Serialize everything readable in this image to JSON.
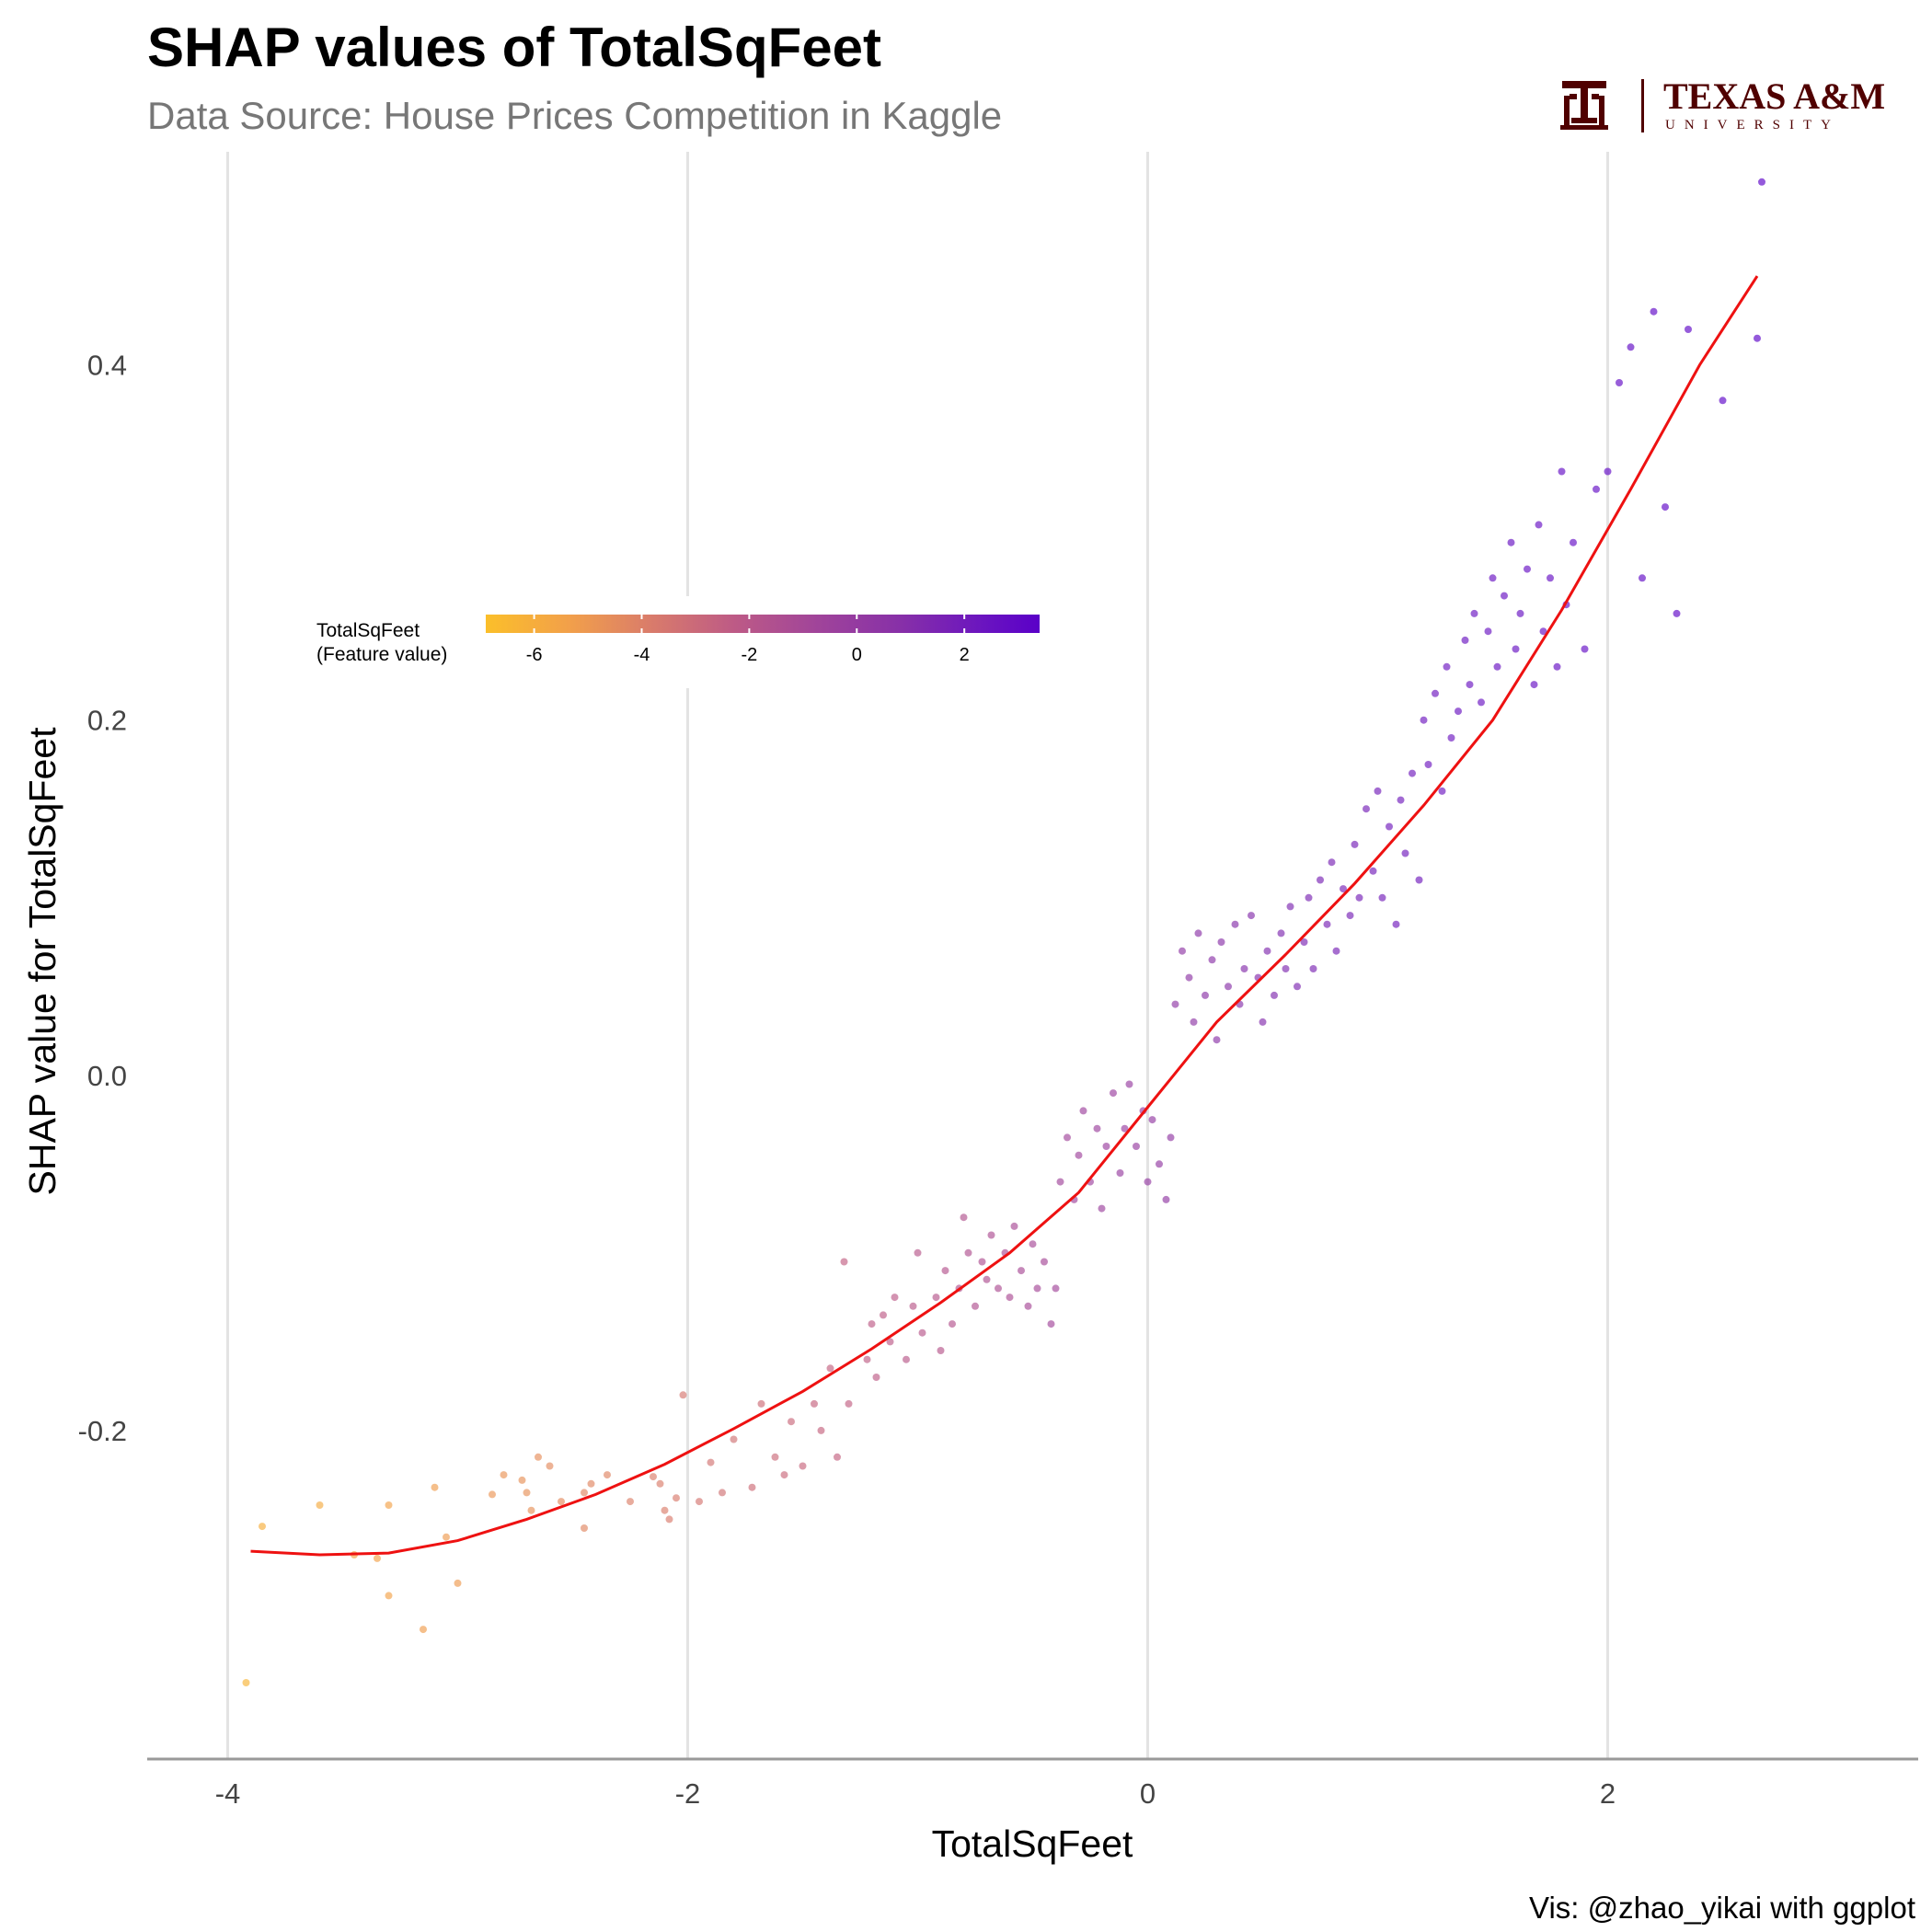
{
  "header": {
    "title": "SHAP values of TotalSqFeet",
    "subtitle": "Data Source: House Prices Competition in Kaggle",
    "caption": "Vis: @zhao_yikai with ggplot"
  },
  "logo": {
    "name": "TEXAS A&M",
    "sub": "UNIVERSITY",
    "color": "#500000"
  },
  "chart_data": {
    "type": "scatter",
    "title": "SHAP values of TotalSqFeet",
    "subtitle": "Data Source: House Prices Competition in Kaggle",
    "xlabel": "TotalSqFeet",
    "ylabel": "SHAP value for TotalSqFeet",
    "xlim": [
      -4.35,
      3.35
    ],
    "ylim": [
      -0.385,
      0.52
    ],
    "x_ticks": [
      -4,
      -2,
      0,
      2
    ],
    "x_tick_labels": [
      "-4",
      "-2",
      "0",
      "2"
    ],
    "y_ticks": [
      -0.2,
      0.0,
      0.2,
      0.4
    ],
    "y_tick_labels": [
      "-0.2",
      "0.0",
      "0.2",
      "0.4"
    ],
    "grid": "vertical major gridlines",
    "point_alpha": 0.65,
    "color_scale": {
      "title_line1": "TotalSqFeet",
      "title_line2": "(Feature value)",
      "min": -6.9,
      "max": 3.4,
      "ticks": [
        -6,
        -4,
        -2,
        0,
        2
      ],
      "tick_labels": [
        "-6",
        "-4",
        "-2",
        "0",
        "2"
      ],
      "colors": [
        "#fbbf2a",
        "#f2a04a",
        "#d97b6b",
        "#bd5a86",
        "#a0449a",
        "#8730a8",
        "#6a14c0",
        "#5a00c8"
      ],
      "legend_position": "upper-left inside plot, horizontal"
    },
    "smooth_line": {
      "color": "#ee1111",
      "x": [
        -3.9,
        -3.6,
        -3.3,
        -3.0,
        -2.7,
        -2.4,
        -2.1,
        -1.8,
        -1.5,
        -1.2,
        -0.9,
        -0.6,
        -0.3,
        0.0,
        0.3,
        0.6,
        0.9,
        1.2,
        1.5,
        1.8,
        2.1,
        2.4,
        2.65
      ],
      "y": [
        -0.268,
        -0.27,
        -0.269,
        -0.262,
        -0.25,
        -0.236,
        -0.219,
        -0.199,
        -0.178,
        -0.154,
        -0.128,
        -0.1,
        -0.066,
        -0.018,
        0.03,
        0.068,
        0.108,
        0.152,
        0.2,
        0.262,
        0.33,
        0.4,
        0.45
      ]
    },
    "series": [
      {
        "x": [
          -3.92,
          -3.85,
          -3.6,
          -3.45,
          -3.35,
          -3.3,
          -3.3,
          -3.15,
          -3.1,
          -3.05,
          -3.0,
          -2.85,
          -2.8,
          -2.72,
          -2.7,
          -2.68,
          -2.65,
          -2.6,
          -2.55,
          -2.45,
          -2.45,
          -2.42,
          -2.35,
          -2.25,
          -2.15,
          -2.12,
          -2.1,
          -2.08,
          -2.05,
          -2.02,
          -1.95,
          -1.9,
          -1.85,
          -1.8,
          -1.72,
          -1.68,
          -1.62,
          -1.58,
          -1.55,
          -1.5,
          -1.45,
          -1.42,
          -1.38,
          -1.35,
          -1.32,
          -1.3,
          -1.22,
          -1.2,
          -1.18,
          -1.15,
          -1.12,
          -1.1,
          -1.05,
          -1.02,
          -1.0,
          -0.98,
          -0.92,
          -0.9,
          -0.88,
          -0.85
        ],
        "y": [
          -0.342,
          -0.254,
          -0.242,
          -0.27,
          -0.272,
          -0.293,
          -0.242,
          -0.312,
          -0.232,
          -0.26,
          -0.286,
          -0.236,
          -0.225,
          -0.228,
          -0.235,
          -0.245,
          -0.215,
          -0.22,
          -0.24,
          -0.255,
          -0.235,
          -0.23,
          -0.225,
          -0.24,
          -0.226,
          -0.23,
          -0.245,
          -0.25,
          -0.238,
          -0.18,
          -0.24,
          -0.218,
          -0.235,
          -0.205,
          -0.232,
          -0.185,
          -0.215,
          -0.225,
          -0.195,
          -0.22,
          -0.185,
          -0.2,
          -0.165,
          -0.215,
          -0.105,
          -0.185,
          -0.16,
          -0.14,
          -0.17,
          -0.135,
          -0.15,
          -0.125,
          -0.16,
          -0.13,
          -0.1,
          -0.145,
          -0.125,
          -0.155,
          -0.11,
          -0.14
        ],
        "color_value": [
          -6.4,
          -6.1,
          -5.9,
          -5.6,
          -5.5,
          -5.5,
          -5.5,
          -5.3,
          -5.3,
          -5.2,
          -5.2,
          -5.0,
          -4.9,
          -4.8,
          -4.8,
          -4.8,
          -4.7,
          -4.6,
          -4.6,
          -4.4,
          -4.4,
          -4.4,
          -4.3,
          -4.1,
          -4.0,
          -4.0,
          -4.0,
          -3.9,
          -3.9,
          -3.8,
          -3.7,
          -3.6,
          -3.5,
          -3.5,
          -3.3,
          -3.3,
          -3.2,
          -3.1,
          -3.1,
          -3.0,
          -2.9,
          -2.9,
          -2.8,
          -2.8,
          -2.7,
          -2.7,
          -2.6,
          -2.5,
          -2.5,
          -2.5,
          -2.4,
          -2.4,
          -2.3,
          -2.3,
          -2.2,
          -2.2,
          -2.1,
          -2.1,
          -2.0,
          -2.0
        ]
      },
      {
        "x": [
          -0.82,
          -0.8,
          -0.78,
          -0.75,
          -0.72,
          -0.7,
          -0.68,
          -0.65,
          -0.62,
          -0.6,
          -0.58,
          -0.55,
          -0.52,
          -0.5,
          -0.48,
          -0.45,
          -0.42,
          -0.4,
          -0.38,
          -0.35,
          -0.32,
          -0.3,
          -0.28,
          -0.25,
          -0.22,
          -0.2,
          -0.18,
          -0.15,
          -0.12,
          -0.1,
          -0.08,
          -0.05,
          -0.02,
          0.0,
          0.02,
          0.05,
          0.08,
          0.1,
          0.12,
          0.15,
          0.18,
          0.2,
          0.22,
          0.25,
          0.28,
          0.3,
          0.32,
          0.35,
          0.38,
          0.4,
          0.42,
          0.45,
          0.48,
          0.5,
          0.52,
          0.55,
          0.58,
          0.6,
          0.62,
          0.65
        ],
        "y": [
          -0.12,
          -0.08,
          -0.1,
          -0.13,
          -0.105,
          -0.115,
          -0.09,
          -0.12,
          -0.1,
          -0.125,
          -0.085,
          -0.11,
          -0.13,
          -0.095,
          -0.12,
          -0.105,
          -0.14,
          -0.12,
          -0.06,
          -0.035,
          -0.07,
          -0.045,
          -0.02,
          -0.06,
          -0.03,
          -0.075,
          -0.04,
          -0.01,
          -0.055,
          -0.03,
          -0.005,
          -0.04,
          -0.02,
          -0.06,
          -0.025,
          -0.05,
          -0.07,
          -0.035,
          0.04,
          0.07,
          0.055,
          0.03,
          0.08,
          0.045,
          0.065,
          0.02,
          0.075,
          0.05,
          0.085,
          0.04,
          0.06,
          0.09,
          0.055,
          0.03,
          0.07,
          0.045,
          0.08,
          0.06,
          0.095,
          0.05
        ],
        "color_value": [
          -1.9,
          -1.9,
          -1.8,
          -1.8,
          -1.7,
          -1.7,
          -1.6,
          -1.6,
          -1.5,
          -1.5,
          -1.4,
          -1.4,
          -1.3,
          -1.3,
          -1.2,
          -1.2,
          -1.1,
          -1.1,
          -1.0,
          -1.0,
          -0.9,
          -0.9,
          -0.8,
          -0.8,
          -0.7,
          -0.7,
          -0.6,
          -0.6,
          -0.5,
          -0.5,
          -0.4,
          -0.4,
          -0.3,
          -0.3,
          -0.2,
          -0.2,
          -0.1,
          -0.1,
          0.0,
          0.0,
          0.1,
          0.1,
          0.2,
          0.2,
          0.3,
          0.3,
          0.4,
          0.4,
          0.5,
          0.5,
          0.6,
          0.6,
          0.7,
          0.7,
          0.8,
          0.8,
          0.9,
          0.9,
          1.0,
          1.0
        ]
      },
      {
        "x": [
          0.68,
          0.7,
          0.72,
          0.75,
          0.78,
          0.8,
          0.82,
          0.85,
          0.88,
          0.9,
          0.92,
          0.95,
          0.98,
          1.0,
          1.02,
          1.05,
          1.08,
          1.1,
          1.12,
          1.15,
          1.18,
          1.2,
          1.22,
          1.25,
          1.28,
          1.3,
          1.32,
          1.35,
          1.38,
          1.4,
          1.42,
          1.45,
          1.48,
          1.5,
          1.52,
          1.55,
          1.58,
          1.6,
          1.62,
          1.65,
          1.68,
          1.7,
          1.72,
          1.75,
          1.78,
          1.8,
          1.82,
          1.85,
          1.9,
          1.95,
          2.0,
          2.05,
          2.1,
          2.15,
          2.2,
          2.25,
          2.3,
          2.35,
          2.5,
          2.65,
          2.67
        ],
        "y": [
          0.075,
          0.1,
          0.06,
          0.11,
          0.085,
          0.12,
          0.07,
          0.105,
          0.09,
          0.13,
          0.1,
          0.15,
          0.115,
          0.16,
          0.1,
          0.14,
          0.085,
          0.155,
          0.125,
          0.17,
          0.11,
          0.2,
          0.175,
          0.215,
          0.16,
          0.23,
          0.19,
          0.205,
          0.245,
          0.22,
          0.26,
          0.21,
          0.25,
          0.28,
          0.23,
          0.27,
          0.3,
          0.24,
          0.26,
          0.285,
          0.22,
          0.31,
          0.25,
          0.28,
          0.23,
          0.34,
          0.265,
          0.3,
          0.24,
          0.33,
          0.34,
          0.39,
          0.41,
          0.28,
          0.43,
          0.32,
          0.26,
          0.42,
          0.38,
          0.415,
          0.503
        ],
        "color_value": [
          1.1,
          1.1,
          1.1,
          1.2,
          1.2,
          1.2,
          1.3,
          1.3,
          1.3,
          1.4,
          1.4,
          1.4,
          1.5,
          1.5,
          1.5,
          1.6,
          1.6,
          1.6,
          1.7,
          1.7,
          1.7,
          1.8,
          1.8,
          1.8,
          1.9,
          1.9,
          1.9,
          2.0,
          2.0,
          2.0,
          2.1,
          2.1,
          2.1,
          2.2,
          2.2,
          2.2,
          2.3,
          2.3,
          2.3,
          2.4,
          2.4,
          2.4,
          2.5,
          2.5,
          2.5,
          2.6,
          2.6,
          2.6,
          2.7,
          2.7,
          2.8,
          2.8,
          2.9,
          2.9,
          3.0,
          3.0,
          3.1,
          3.1,
          3.2,
          3.3,
          3.4
        ]
      }
    ]
  }
}
